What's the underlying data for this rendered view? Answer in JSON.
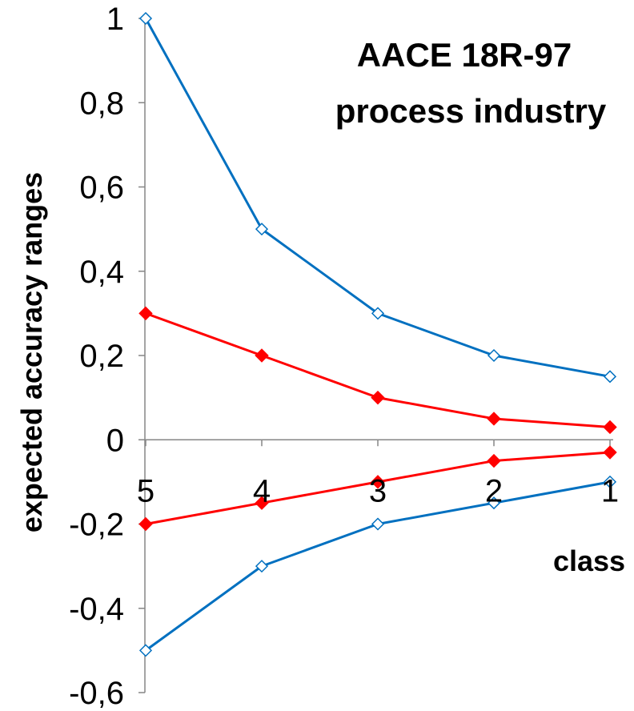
{
  "chart_data": {
    "type": "line",
    "title": [
      "AACE 18R-97",
      "process industry"
    ],
    "xlabel": "class",
    "ylabel": "expected accuracy ranges",
    "categories": [
      "5",
      "4",
      "3",
      "2",
      "1"
    ],
    "y_tick_labels": [
      "1",
      "0,8",
      "0,6",
      "0,4",
      "0,2",
      "0",
      "-0,2",
      "-0,4",
      "-0,6"
    ],
    "ylim": [
      -0.6,
      1.0
    ],
    "y_ticks": [
      1,
      0.8,
      0.6,
      0.4,
      0.2,
      0,
      -0.2,
      -0.4,
      -0.6
    ],
    "grid": false,
    "legend": "none",
    "series": [
      {
        "values": [
          1.0,
          0.5,
          0.3,
          0.2,
          0.15
        ],
        "color": "#0070C0",
        "marker": "open-diamond"
      },
      {
        "values": [
          0.3,
          0.2,
          0.1,
          0.05,
          0.03
        ],
        "color": "#FF0000",
        "marker": "filled-diamond"
      },
      {
        "values": [
          -0.2,
          -0.15,
          -0.1,
          -0.05,
          -0.03
        ],
        "color": "#FF0000",
        "marker": "filled-diamond"
      },
      {
        "values": [
          -0.5,
          -0.3,
          -0.2,
          -0.15,
          -0.1
        ],
        "color": "#0070C0",
        "marker": "open-diamond"
      }
    ]
  }
}
